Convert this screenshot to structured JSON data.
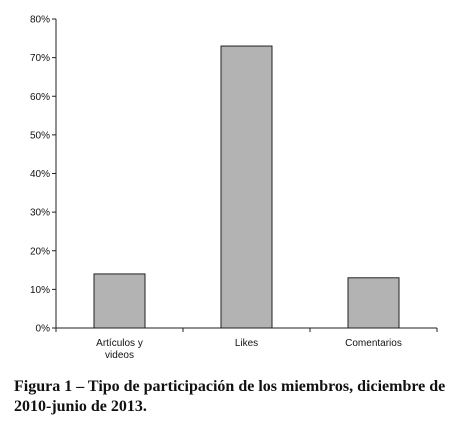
{
  "chart_data": {
    "type": "bar",
    "categories": [
      "Artículos y videos",
      "Likes",
      "Comentarios"
    ],
    "category_lines": [
      [
        "Artículos y",
        "videos"
      ],
      [
        "Likes"
      ],
      [
        "Comentarios"
      ]
    ],
    "values": [
      14,
      73,
      13
    ],
    "unit": "%",
    "ylim": [
      0,
      80
    ],
    "yticks": [
      "0%",
      "10%",
      "20%",
      "30%",
      "40%",
      "50%",
      "60%",
      "70%",
      "80%"
    ],
    "grid": false,
    "bar_color": "#b3b3b3",
    "title": "Figura 1 – Tipo de participación de los miembros, diciembre de 2010-junio de 2013."
  }
}
